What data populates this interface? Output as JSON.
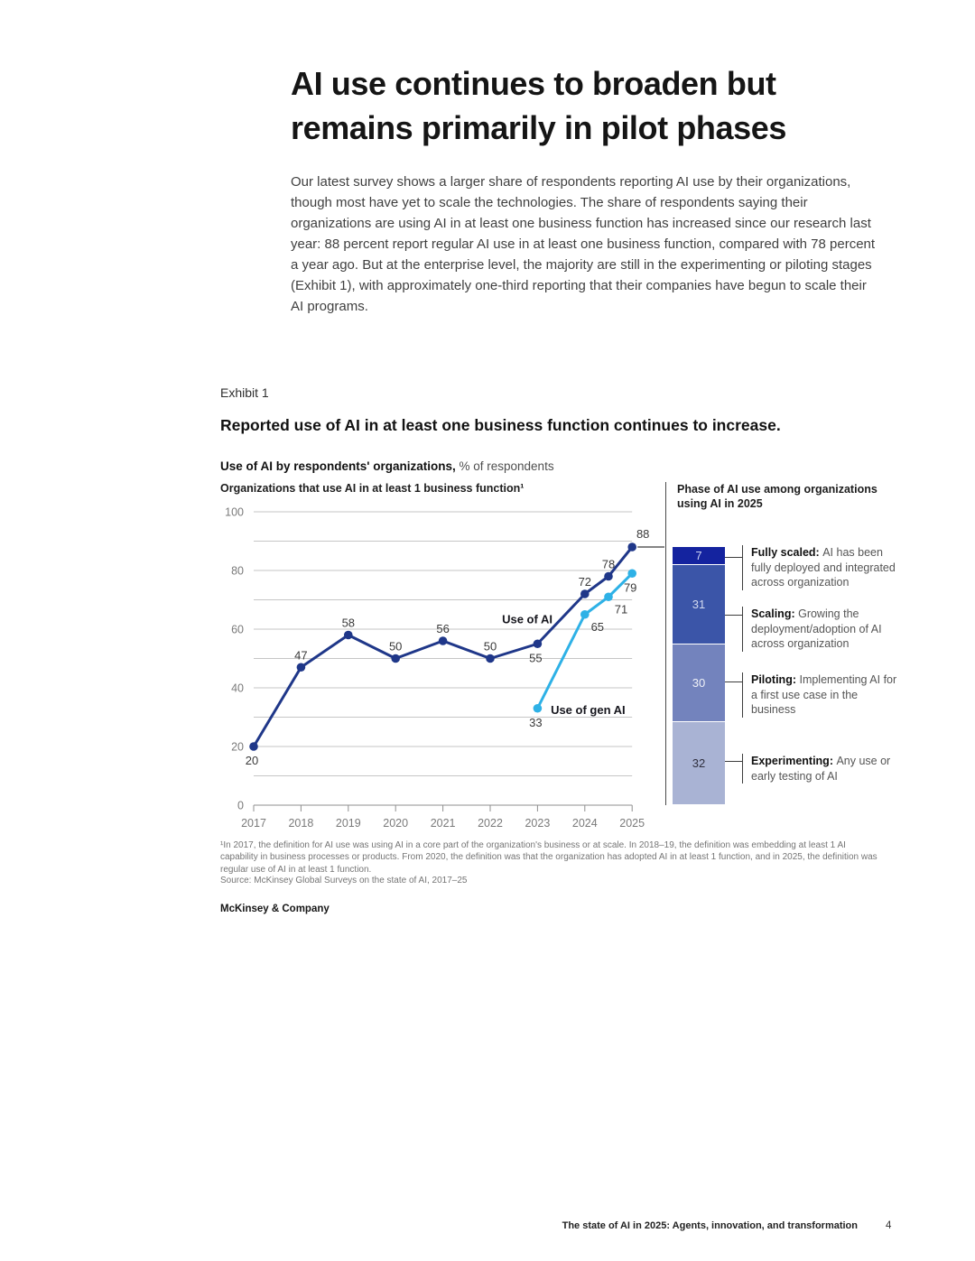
{
  "page": {
    "title": "AI use continues to broaden but remains primarily in pilot phases",
    "intro": "Our latest survey shows a larger share of respondents reporting AI use by their organizations, though most have yet to scale the technologies. The share of respondents saying their organizations are using AI in at least one business function has increased since our research last year: 88 percent report regular AI use in at least one business function, compared with 78 percent a year ago. But at the enterprise level, the majority are still in the experimenting or piloting stages (Exhibit 1), with approximately one-third reporting that their companies have begun to scale their AI programs.",
    "brand": "McKinsey & Company",
    "footer": {
      "label": "The state of AI in 2025: Agents, innovation, and transformation",
      "page_number": "4"
    }
  },
  "exhibit": {
    "kicker": "Exhibit 1",
    "heading": "Reported use of AI in at least one business function continues to increase.",
    "subtitle_bold": "Use of AI by respondents' organizations,",
    "subtitle_rest": " % of respondents",
    "left_panel_title": "Organizations that use AI in at least 1 business function¹",
    "right_panel_title": "Phase of AI use among organizations using AI in 2025",
    "footnote": "¹In 2017, the definition for AI use was using AI in a core part of the organization's business or at scale. In 2018–19, the definition was embedding at least 1 AI capability in business processes or products. From 2020, the definition was that the organization has adopted AI in at least 1 function, and in 2025, the definition was regular use of AI in at least 1 function.",
    "source": "Source: McKinsey Global Surveys on the state of AI, 2017–25"
  },
  "chart_data": [
    {
      "type": "line",
      "title": "Organizations that use AI in at least 1 business function",
      "xlabel": "",
      "ylabel": "% of respondents",
      "ylim": [
        0,
        100
      ],
      "grid_step": 10,
      "grid": true,
      "y_axis_labels": [
        0,
        20,
        40,
        60,
        80,
        100
      ],
      "x_ticks": [
        "2017",
        "2018",
        "2019",
        "2020",
        "2021",
        "2022",
        "2023",
        "2024",
        "2025"
      ],
      "series": [
        {
          "name": "Use of AI",
          "color": "#1f3789",
          "inline_label": {
            "text": "Use of AI",
            "x": 2022.25,
            "y": 62
          },
          "points": [
            {
              "x": 2017,
              "y": 20,
              "pos": "below"
            },
            {
              "x": 2018,
              "y": 47,
              "pos": "above"
            },
            {
              "x": 2019,
              "y": 58,
              "pos": "above"
            },
            {
              "x": 2020,
              "y": 50,
              "pos": "above"
            },
            {
              "x": 2021,
              "y": 56,
              "pos": "above"
            },
            {
              "x": 2022,
              "y": 50,
              "pos": "above"
            },
            {
              "x": 2023,
              "y": 55,
              "pos": "below"
            },
            {
              "x": 2024,
              "y": 72,
              "pos": "above"
            },
            {
              "x": 2024.5,
              "y": 78,
              "pos": "above"
            },
            {
              "x": 2025,
              "y": 88,
              "pos": "above-right"
            }
          ]
        },
        {
          "name": "Use of gen AI",
          "color": "#2eb1e6",
          "inline_label": {
            "text": "Use of gen AI",
            "x": 2023.28,
            "y": 31.1
          },
          "points": [
            {
              "x": 2023,
              "y": 33,
              "pos": "below"
            },
            {
              "x": 2024,
              "y": 65,
              "pos": "below-right"
            },
            {
              "x": 2024.5,
              "y": 71,
              "pos": "below-right"
            },
            {
              "x": 2025,
              "y": 79,
              "pos": "below"
            }
          ]
        }
      ],
      "connector_y": 88,
      "legend_position": "inline"
    },
    {
      "type": "stacked-bar",
      "title": "Phase of AI use among organizations using AI in 2025",
      "bar_top_value": 88,
      "unit_total": 100,
      "segments": [
        {
          "value": 7,
          "color": "#14239f",
          "text_color": "#ccd3f1",
          "label": "Fully scaled:",
          "desc": "AI has been fully deployed and integrated across organization"
        },
        {
          "value": 31,
          "color": "#3b55a8",
          "text_color": "#d3daf0",
          "label": "Scaling:",
          "desc": "Growing the deployment/adoption of AI across organization"
        },
        {
          "value": 30,
          "color": "#7383bd",
          "text_color": "#eff1f8",
          "label": "Piloting:",
          "desc": "Implementing AI for a first use case in the business"
        },
        {
          "value": 32,
          "color": "#a9b3d4",
          "text_color": "#2f2f3e",
          "label": "Experimenting:",
          "desc": "Any use or early testing of AI"
        }
      ]
    }
  ]
}
